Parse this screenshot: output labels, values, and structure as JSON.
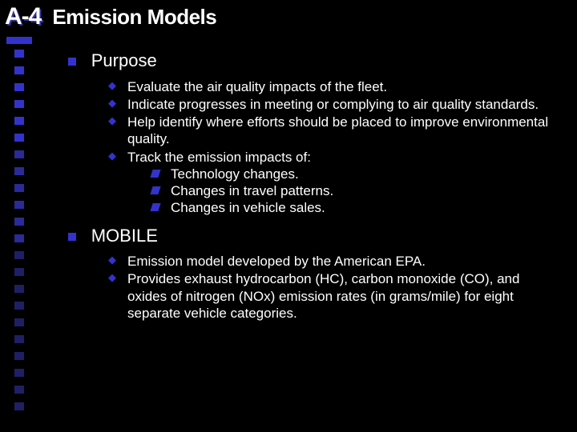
{
  "colors": {
    "background": "#000000",
    "text": "#ffffff",
    "accent": "#3333cc",
    "title_shadow": "#333399"
  },
  "header": {
    "pagecode": "A-4",
    "title": "Emission Models"
  },
  "left_stripe": {
    "square_color_bright": "#3333cc",
    "square_color_mid": "#2a2a99",
    "square_color_dark": "#1f1f66",
    "count": 22
  },
  "sections": [
    {
      "label": "Purpose",
      "items": [
        {
          "text": "Evaluate the air quality impacts of the fleet."
        },
        {
          "text": "Indicate progresses in meeting or complying to air quality standards."
        },
        {
          "text": "Help identify where efforts should be placed to improve environmental quality."
        },
        {
          "text": "Track the emission impacts of:",
          "subitems": [
            "Technology changes.",
            "Changes in travel patterns.",
            "Changes in vehicle sales."
          ]
        }
      ]
    },
    {
      "label": "MOBILE",
      "items": [
        {
          "text": "Emission model developed by the American EPA."
        },
        {
          "text": "Provides exhaust hydrocarbon (HC), carbon monoxide (CO), and oxides of nitrogen (NOx) emission rates (in grams/mile) for eight separate vehicle categories."
        }
      ]
    }
  ]
}
